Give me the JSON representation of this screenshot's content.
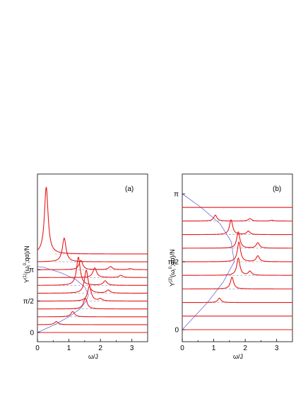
{
  "chart_data": [
    {
      "type": "line",
      "panel_label": "(a)",
      "xlabel": "ω/J",
      "ylabel_parts": {
        "base": "Y",
        "sup1": "(1)",
        "mid": "(ω",
        "sub": "l",
        "sup2": "0",
        "tail": ";qα)/N"
      },
      "xlim": [
        0,
        3.5
      ],
      "x_ticks": [
        "0",
        "1",
        "2",
        "3"
      ],
      "y_ticks": [
        {
          "label": "0",
          "row": 0
        },
        {
          "label": "π/2",
          "row": 4
        },
        {
          "label": "π",
          "row": 8
        }
      ],
      "rows": 9,
      "series": [
        {
          "q_index": 0,
          "peaks": []
        },
        {
          "q_index": 1,
          "peaks": [
            {
              "omega": 0.6,
              "height": 0.35
            }
          ]
        },
        {
          "q_index": 2,
          "peaks": [
            {
              "omega": 1.12,
              "height": 0.6
            }
          ]
        },
        {
          "q_index": 3,
          "peaks": [
            {
              "omega": 1.52,
              "height": 1.2
            }
          ]
        },
        {
          "q_index": 4,
          "peaks": [
            {
              "omega": 1.65,
              "height": 1.7
            },
            {
              "omega": 2.0,
              "height": 0.25
            }
          ]
        },
        {
          "q_index": 5,
          "peaks": [
            {
              "omega": 1.55,
              "height": 2.6
            },
            {
              "omega": 2.25,
              "height": 0.35
            }
          ]
        },
        {
          "q_index": 6,
          "peaks": [
            {
              "omega": 1.3,
              "height": 3.2
            },
            {
              "omega": 2.15,
              "height": 0.5
            }
          ]
        },
        {
          "q_index": 7,
          "peaks": [
            {
              "omega": 1.82,
              "height": 1.1
            },
            {
              "omega": 2.65,
              "height": 0.25
            }
          ]
        },
        {
          "q_index": 8,
          "peaks": [
            {
              "omega": 1.38,
              "height": 1.05
            },
            {
              "omega": 2.32,
              "height": 0.35
            },
            {
              "omega": 2.95,
              "height": 0.12
            }
          ]
        },
        {
          "q_index": 9,
          "peaks": [
            {
              "omega": 0.85,
              "height": 2.7
            }
          ]
        },
        {
          "q_index": 10,
          "peaks": [
            {
              "omega": 0.28,
              "height": 7.6
            }
          ]
        }
      ],
      "dispersion_curve": [
        [
          0,
          0
        ],
        [
          0.55,
          1
        ],
        [
          1.0,
          2
        ],
        [
          1.35,
          3
        ],
        [
          1.55,
          4
        ],
        [
          1.62,
          4.8
        ],
        [
          1.5,
          5.8
        ],
        [
          1.2,
          6.8
        ],
        [
          0.75,
          7.6
        ],
        [
          0.2,
          8.3
        ],
        [
          0,
          8.4
        ]
      ]
    },
    {
      "type": "line",
      "panel_label": "(b)",
      "xlabel": "ω/J",
      "ylabel_parts": {
        "base": "Y",
        "sup1": "(2)",
        "mid": "(ω",
        "sub": "l",
        "sup2": "0",
        "tail": ";qα)/N"
      },
      "xlim": [
        0,
        3.5
      ],
      "x_ticks": [
        "0",
        "1",
        "2",
        "3"
      ],
      "y_ticks": [
        {
          "label": "0",
          "row": 0
        },
        {
          "label": "π/2",
          "row": 5
        },
        {
          "label": "π",
          "row": 10
        }
      ],
      "rows": 10,
      "series": [
        {
          "q_index": 0,
          "peaks": []
        },
        {
          "q_index": 1,
          "peaks": []
        },
        {
          "q_index": 2,
          "peaks": [
            {
              "omega": 1.18,
              "height": 0.45
            }
          ]
        },
        {
          "q_index": 3,
          "peaks": [
            {
              "omega": 1.58,
              "height": 1.2
            }
          ]
        },
        {
          "q_index": 4,
          "peaks": [
            {
              "omega": 1.78,
              "height": 1.75
            },
            {
              "omega": 2.15,
              "height": 0.4
            }
          ]
        },
        {
          "q_index": 5,
          "peaks": [
            {
              "omega": 1.8,
              "height": 2.0
            },
            {
              "omega": 2.4,
              "height": 0.6
            }
          ]
        },
        {
          "q_index": 6,
          "peaks": [
            {
              "omega": 1.78,
              "height": 1.65
            },
            {
              "omega": 2.4,
              "height": 0.55
            }
          ]
        },
        {
          "q_index": 7,
          "peaks": [
            {
              "omega": 1.55,
              "height": 1.5
            },
            {
              "omega": 2.1,
              "height": 0.35
            }
          ]
        },
        {
          "q_index": 8,
          "peaks": [
            {
              "omega": 1.05,
              "height": 0.6
            },
            {
              "omega": 2.15,
              "height": 0.25
            },
            {
              "omega": 2.85,
              "height": 0.08
            }
          ]
        },
        {
          "q_index": 9,
          "peaks": []
        }
      ],
      "dispersion_curve": [
        [
          0,
          0
        ],
        [
          0.8,
          2
        ],
        [
          1.3,
          3.5
        ],
        [
          1.65,
          5
        ],
        [
          1.55,
          6.5
        ],
        [
          1.2,
          7.8
        ],
        [
          0.6,
          9
        ],
        [
          0,
          10
        ]
      ]
    }
  ]
}
